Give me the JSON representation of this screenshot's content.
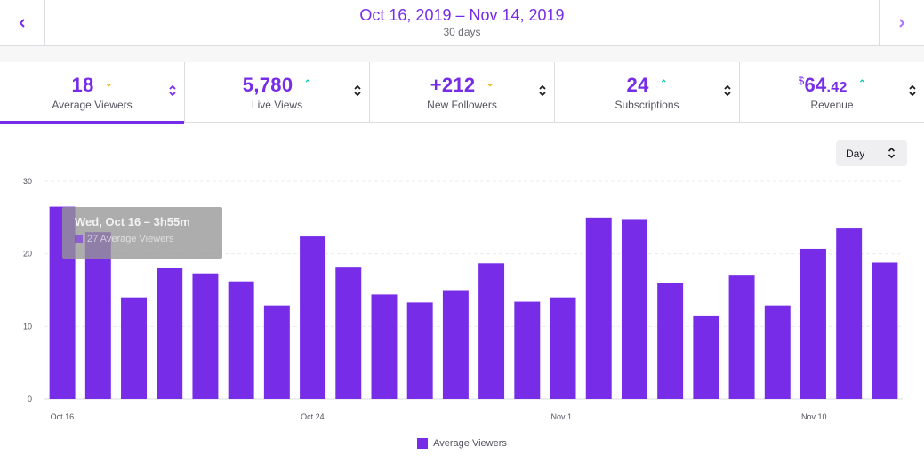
{
  "header": {
    "prev_icon": "chevron-left-icon",
    "next_icon": "chevron-right-icon",
    "date_range": "Oct 16, 2019 – Nov 14, 2019",
    "duration": "30 days"
  },
  "stats": [
    {
      "value": "18",
      "label": "Average Viewers",
      "trend": "down",
      "trend_glyph": "⌄",
      "active": true
    },
    {
      "value": "5,780",
      "label": "Live Views",
      "trend": "up",
      "trend_glyph": "⌃",
      "active": false
    },
    {
      "value": "+212",
      "label": "New Followers",
      "trend": "down",
      "trend_glyph": "⌄",
      "active": false
    },
    {
      "value": "24",
      "label": "Subscriptions",
      "trend": "up",
      "trend_glyph": "⌃",
      "active": false
    },
    {
      "value_currency": "$",
      "value_main": "64",
      "value_decimal": ".42",
      "label": "Revenue",
      "trend": "up",
      "trend_glyph": "⌃",
      "active": false
    }
  ],
  "controls": {
    "interval": "Day",
    "colors": {
      "accent": "#772ce8",
      "trend_up": "#00c7ac",
      "trend_down": "#e9b500"
    }
  },
  "tooltip": {
    "title": "Wed, Oct 16 – 3h55m",
    "row": "27 Average Viewers"
  },
  "chart_data": {
    "type": "bar",
    "title": "",
    "xlabel": "",
    "ylabel": "",
    "ylim": [
      0,
      30
    ],
    "yticks": [
      "0",
      "10",
      "20",
      "30"
    ],
    "grid": true,
    "legend": "bottom-center",
    "series": [
      {
        "name": "Average Viewers",
        "color": "#772ce8",
        "values": [
          26.5,
          23,
          14,
          18,
          17.3,
          16.2,
          12.9,
          22.4,
          18.1,
          14.4,
          13.3,
          15,
          18.7,
          13.4,
          14,
          25,
          24.8,
          16,
          11.4,
          17,
          12.9,
          20.7,
          23.5,
          18.8
        ]
      }
    ],
    "x_tick_labels": [
      {
        "label": "Oct 16",
        "index": 0
      },
      {
        "label": "Oct 24",
        "index": 7
      },
      {
        "label": "Nov 1",
        "index": 14
      },
      {
        "label": "Nov 10",
        "index": 21
      }
    ]
  }
}
